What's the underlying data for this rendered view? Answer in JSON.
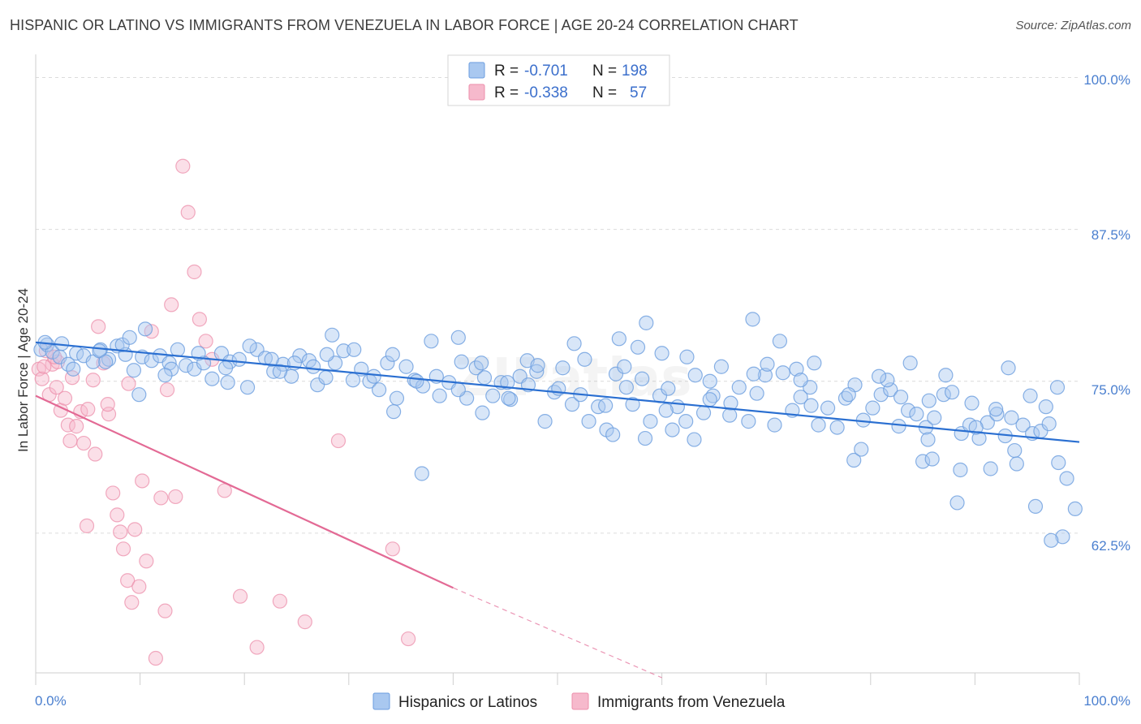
{
  "title": "HISPANIC OR LATINO VS IMMIGRANTS FROM VENEZUELA IN LABOR FORCE | AGE 20-24 CORRELATION CHART",
  "source": "Source: ZipAtlas.com",
  "colors": {
    "blue_fill": "#a9c8f0",
    "blue_stroke": "#6b9ddf",
    "blue_line": "#2a6fd1",
    "pink_fill": "#f6b9cc",
    "pink_stroke": "#ec8fab",
    "pink_line": "#e36a95",
    "tick_text": "#4a7fcf",
    "grid": "#dcdcdc"
  },
  "legend": {
    "rows": [
      {
        "r_label": "R =",
        "r_value": "-0.701",
        "n_label": "N =",
        "n_value": "198"
      },
      {
        "r_label": "R =",
        "r_value": "-0.338",
        "n_label": "N =",
        "n_value": "57"
      }
    ]
  },
  "bottom_legend": [
    "Hispanics or Latinos",
    "Immigrants from Venezuela"
  ],
  "chart_data": {
    "type": "scatter",
    "title": "HISPANIC OR LATINO VS IMMIGRANTS FROM VENEZUELA IN LABOR FORCE | AGE 20-24 CORRELATION CHART",
    "xlabel": "",
    "ylabel": "In Labor Force | Age 20-24",
    "xlim": [
      0,
      100
    ],
    "ylim": [
      51,
      101.5
    ],
    "x_tick_labels": [
      "0.0%",
      "100.0%"
    ],
    "y_ticks": [
      62.5,
      75.0,
      87.5,
      100.0
    ],
    "y_tick_labels": [
      "62.5%",
      "75.0%",
      "87.5%",
      "100.0%"
    ],
    "grid": true,
    "legend_position": "top-center",
    "series": [
      {
        "name": "Hispanics or Latinos",
        "color": "#6b9ddf",
        "trend": {
          "x": [
            0,
            100
          ],
          "y": [
            78.2,
            70.0
          ]
        },
        "points": [
          [
            0.5,
            77.6
          ],
          [
            1.1,
            78.0
          ],
          [
            1.6,
            77.4
          ],
          [
            2.3,
            77.0
          ],
          [
            3.1,
            76.4
          ],
          [
            3.9,
            77.3
          ],
          [
            4.6,
            77.1
          ],
          [
            5.5,
            76.6
          ],
          [
            6.2,
            77.6
          ],
          [
            7.0,
            76.8
          ],
          [
            7.8,
            77.9
          ],
          [
            8.6,
            77.2
          ],
          [
            9.4,
            75.9
          ],
          [
            10.2,
            77.0
          ],
          [
            11.1,
            76.7
          ],
          [
            11.9,
            77.1
          ],
          [
            12.8,
            76.5
          ],
          [
            13.6,
            77.6
          ],
          [
            14.4,
            76.3
          ],
          [
            15.2,
            76.0
          ],
          [
            16.1,
            76.5
          ],
          [
            16.9,
            75.2
          ],
          [
            17.8,
            77.3
          ],
          [
            18.6,
            76.6
          ],
          [
            19.5,
            76.8
          ],
          [
            20.3,
            74.5
          ],
          [
            21.2,
            77.6
          ],
          [
            22.0,
            76.9
          ],
          [
            22.8,
            75.8
          ],
          [
            23.7,
            76.4
          ],
          [
            24.5,
            75.4
          ],
          [
            25.3,
            77.1
          ],
          [
            26.2,
            76.7
          ],
          [
            27.0,
            74.7
          ],
          [
            27.8,
            75.3
          ],
          [
            28.7,
            76.5
          ],
          [
            29.5,
            77.5
          ],
          [
            30.4,
            75.1
          ],
          [
            31.2,
            76.0
          ],
          [
            32.0,
            75.0
          ],
          [
            32.9,
            74.3
          ],
          [
            33.7,
            76.5
          ],
          [
            34.6,
            73.6
          ],
          [
            35.5,
            76.2
          ],
          [
            36.3,
            75.1
          ],
          [
            37.1,
            74.6
          ],
          [
            37.9,
            78.3
          ],
          [
            38.7,
            73.8
          ],
          [
            39.6,
            74.9
          ],
          [
            40.5,
            78.6
          ],
          [
            41.3,
            73.6
          ],
          [
            42.2,
            76.1
          ],
          [
            43.0,
            75.3
          ],
          [
            43.8,
            73.8
          ],
          [
            44.6,
            74.9
          ],
          [
            45.5,
            73.5
          ],
          [
            46.4,
            75.4
          ],
          [
            47.1,
            76.7
          ],
          [
            48.0,
            75.8
          ],
          [
            48.8,
            71.7
          ],
          [
            49.7,
            74.1
          ],
          [
            50.5,
            76.1
          ],
          [
            51.4,
            73.1
          ],
          [
            52.2,
            73.9
          ],
          [
            53.0,
            71.7
          ],
          [
            53.9,
            72.9
          ],
          [
            54.7,
            71.0
          ],
          [
            55.6,
            75.6
          ],
          [
            56.4,
            76.2
          ],
          [
            57.2,
            73.1
          ],
          [
            58.1,
            75.2
          ],
          [
            58.9,
            71.7
          ],
          [
            59.8,
            73.8
          ],
          [
            60.6,
            74.4
          ],
          [
            61.5,
            72.9
          ],
          [
            62.3,
            71.7
          ],
          [
            63.2,
            75.5
          ],
          [
            64.0,
            72.4
          ],
          [
            64.9,
            73.8
          ],
          [
            65.7,
            76.2
          ],
          [
            66.6,
            73.2
          ],
          [
            67.4,
            74.5
          ],
          [
            68.3,
            71.7
          ],
          [
            69.1,
            74.0
          ],
          [
            69.9,
            75.5
          ],
          [
            70.8,
            71.4
          ],
          [
            71.6,
            75.7
          ],
          [
            72.5,
            72.6
          ],
          [
            73.3,
            73.7
          ],
          [
            74.2,
            74.5
          ],
          [
            75.0,
            71.4
          ],
          [
            75.9,
            72.8
          ],
          [
            76.8,
            71.2
          ],
          [
            77.6,
            73.6
          ],
          [
            78.5,
            74.7
          ],
          [
            79.3,
            71.8
          ],
          [
            80.2,
            72.8
          ],
          [
            81.0,
            73.9
          ],
          [
            81.9,
            74.3
          ],
          [
            82.7,
            71.3
          ],
          [
            83.6,
            72.6
          ],
          [
            84.4,
            72.3
          ],
          [
            85.3,
            71.2
          ],
          [
            86.1,
            72.0
          ],
          [
            87.0,
            73.9
          ],
          [
            87.8,
            74.1
          ],
          [
            88.7,
            70.7
          ],
          [
            89.5,
            71.4
          ],
          [
            90.4,
            70.3
          ],
          [
            91.2,
            71.6
          ],
          [
            92.1,
            72.3
          ],
          [
            92.9,
            70.5
          ],
          [
            93.8,
            69.3
          ],
          [
            94.6,
            71.4
          ],
          [
            95.5,
            70.7
          ],
          [
            96.3,
            70.9
          ],
          [
            97.1,
            71.5
          ],
          [
            98.0,
            68.3
          ],
          [
            98.8,
            67.0
          ],
          [
            99.6,
            64.5
          ],
          [
            98.4,
            62.2
          ],
          [
            97.3,
            61.9
          ],
          [
            95.8,
            64.7
          ],
          [
            94.0,
            68.2
          ],
          [
            91.5,
            67.8
          ],
          [
            88.3,
            65.0
          ],
          [
            85.0,
            68.4
          ],
          [
            78.4,
            68.5
          ],
          [
            68.7,
            80.1
          ],
          [
            58.5,
            79.8
          ],
          [
            51.6,
            78.1
          ],
          [
            38.4,
            75.4
          ],
          [
            42.7,
            76.5
          ],
          [
            24.8,
            76.5
          ],
          [
            18.4,
            74.9
          ],
          [
            10.5,
            79.3
          ],
          [
            9.9,
            73.9
          ],
          [
            6.1,
            77.5
          ],
          [
            27.9,
            77.2
          ],
          [
            40.5,
            74.3
          ],
          [
            57.7,
            77.8
          ],
          [
            64.6,
            75.0
          ],
          [
            81.6,
            75.1
          ],
          [
            87.2,
            75.5
          ],
          [
            93.2,
            76.1
          ],
          [
            18.2,
            76.1
          ],
          [
            2.5,
            78.1
          ],
          [
            8.3,
            78.0
          ],
          [
            55.3,
            70.6
          ],
          [
            62.4,
            77.0
          ],
          [
            72.9,
            76.0
          ],
          [
            85.6,
            73.4
          ],
          [
            89.7,
            73.2
          ],
          [
            96.8,
            72.9
          ],
          [
            60.0,
            77.3
          ],
          [
            42.8,
            72.4
          ],
          [
            9.0,
            78.6
          ],
          [
            0.9,
            78.2
          ],
          [
            3.6,
            76.0
          ],
          [
            32.4,
            75.4
          ],
          [
            13.0,
            76.0
          ],
          [
            74.6,
            76.5
          ],
          [
            85.9,
            68.6
          ],
          [
            77.9,
            73.9
          ],
          [
            70.1,
            76.4
          ],
          [
            56.6,
            74.5
          ],
          [
            55.9,
            78.5
          ],
          [
            34.3,
            72.5
          ],
          [
            47.2,
            74.7
          ],
          [
            66.5,
            72.2
          ],
          [
            88.6,
            67.7
          ],
          [
            40.8,
            76.6
          ],
          [
            15.6,
            77.3
          ],
          [
            61.0,
            71.0
          ],
          [
            36.5,
            75.0
          ],
          [
            45.2,
            74.9
          ],
          [
            37.0,
            67.4
          ],
          [
            20.5,
            77.9
          ],
          [
            48.1,
            76.3
          ],
          [
            52.6,
            76.8
          ],
          [
            73.3,
            75.1
          ],
          [
            82.9,
            73.7
          ],
          [
            92.0,
            72.7
          ],
          [
            6.7,
            76.6
          ],
          [
            22.6,
            76.8
          ],
          [
            26.6,
            76.2
          ],
          [
            30.5,
            77.6
          ],
          [
            60.4,
            72.6
          ],
          [
            64.6,
            73.5
          ],
          [
            68.8,
            75.6
          ],
          [
            74.3,
            73.0
          ],
          [
            80.8,
            75.4
          ],
          [
            85.5,
            70.2
          ],
          [
            90.1,
            71.2
          ],
          [
            93.5,
            72.0
          ],
          [
            95.3,
            73.8
          ],
          [
            97.9,
            74.5
          ],
          [
            71.3,
            78.3
          ],
          [
            12.4,
            75.5
          ],
          [
            34.2,
            77.2
          ],
          [
            45.3,
            73.6
          ],
          [
            28.4,
            78.8
          ],
          [
            50.1,
            74.4
          ],
          [
            54.6,
            73.0
          ],
          [
            23.4,
            75.8
          ],
          [
            58.4,
            70.3
          ],
          [
            63.1,
            70.2
          ],
          [
            79.1,
            69.4
          ],
          [
            83.8,
            76.5
          ]
        ]
      },
      {
        "name": "Immigrants from Venezuela",
        "color": "#ec8fab",
        "trend": {
          "x": [
            0,
            40
          ],
          "y": [
            73.8,
            58.0
          ]
        },
        "trend_dashed_extension": {
          "x": [
            40,
            60
          ],
          "y": [
            58.0,
            50.6
          ]
        },
        "points": [
          [
            0.3,
            76.0
          ],
          [
            0.6,
            75.2
          ],
          [
            1.0,
            77.5
          ],
          [
            1.3,
            73.9
          ],
          [
            1.6,
            76.4
          ],
          [
            2.0,
            74.5
          ],
          [
            2.4,
            72.6
          ],
          [
            2.8,
            73.6
          ],
          [
            3.1,
            71.4
          ],
          [
            3.5,
            75.3
          ],
          [
            3.9,
            71.3
          ],
          [
            4.3,
            72.5
          ],
          [
            4.6,
            69.9
          ],
          [
            5.0,
            72.7
          ],
          [
            5.5,
            75.1
          ],
          [
            6.0,
            79.5
          ],
          [
            6.5,
            76.5
          ],
          [
            7.0,
            72.3
          ],
          [
            7.4,
            65.8
          ],
          [
            7.8,
            64.0
          ],
          [
            8.1,
            62.6
          ],
          [
            8.4,
            61.2
          ],
          [
            8.8,
            58.6
          ],
          [
            9.2,
            56.8
          ],
          [
            9.5,
            62.8
          ],
          [
            9.9,
            58.1
          ],
          [
            10.2,
            66.8
          ],
          [
            10.6,
            60.2
          ],
          [
            11.1,
            79.1
          ],
          [
            11.5,
            52.2
          ],
          [
            12.0,
            65.4
          ],
          [
            12.4,
            56.1
          ],
          [
            13.0,
            81.3
          ],
          [
            13.4,
            65.5
          ],
          [
            14.1,
            92.7
          ],
          [
            14.6,
            88.9
          ],
          [
            15.2,
            84.0
          ],
          [
            15.7,
            80.1
          ],
          [
            16.3,
            78.3
          ],
          [
            16.9,
            76.8
          ],
          [
            18.1,
            66.0
          ],
          [
            19.6,
            57.3
          ],
          [
            21.2,
            53.1
          ],
          [
            23.4,
            56.9
          ],
          [
            25.8,
            55.2
          ],
          [
            29.0,
            70.1
          ],
          [
            34.2,
            61.2
          ],
          [
            35.7,
            53.8
          ],
          [
            2.1,
            76.6
          ],
          [
            4.9,
            63.1
          ],
          [
            6.9,
            73.1
          ],
          [
            8.9,
            74.8
          ],
          [
            12.6,
            74.3
          ],
          [
            3.3,
            70.1
          ],
          [
            5.7,
            69.0
          ],
          [
            1.8,
            77.0
          ],
          [
            0.8,
            76.2
          ]
        ]
      }
    ]
  }
}
